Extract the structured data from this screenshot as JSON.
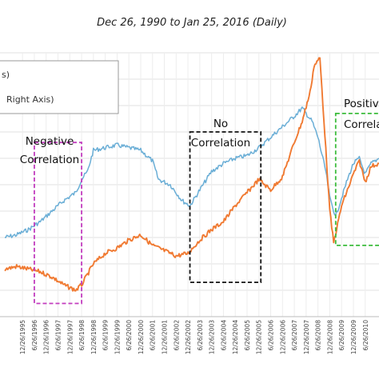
{
  "chart_data": {
    "type": "line",
    "title": "Dec 26, 1990 to Jan 25, 2016 (Daily)",
    "xlabel": "",
    "ylabel": "",
    "legend": {
      "placement": "top-left",
      "entries": [
        {
          "label": "s)",
          "color": "#6aaed6"
        },
        {
          "label": "Right Axis)",
          "color": "#f07a32"
        }
      ]
    },
    "x_tick_labels": [
      "12/26/1995",
      "6/26/1996",
      "12/26/1996",
      "6/26/1997",
      "12/26/1997",
      "6/26/1998",
      "12/26/1998",
      "6/26/1999",
      "12/26/1999",
      "6/26/2000",
      "12/26/2000",
      "6/26/2001",
      "12/26/2001",
      "6/26/2002",
      "12/26/2002",
      "6/26/2003",
      "12/26/2003",
      "6/26/2004",
      "12/26/2004",
      "6/26/2005",
      "12/26/2005",
      "6/26/2006",
      "12/26/2006",
      "6/26/2007",
      "12/26/2007",
      "6/26/2008",
      "12/26/2008",
      "6/26/2009",
      "12/26/2009",
      "6/26/2010"
    ],
    "x_range": [
      "1995-03",
      "2011-01"
    ],
    "y_range": [
      0,
      100
    ],
    "grid": true,
    "series": [
      {
        "color": "#6aaed6",
        "values": [
          [
            "1995-03",
            30
          ],
          [
            "1995-09",
            31
          ],
          [
            "1996-03",
            33
          ],
          [
            "1996-09",
            36
          ],
          [
            "1997-03",
            40
          ],
          [
            "1997-09",
            44
          ],
          [
            "1998-03",
            47
          ],
          [
            "1998-06",
            52
          ],
          [
            "1998-09",
            55
          ],
          [
            "1998-12",
            63
          ],
          [
            "1999-06",
            64
          ],
          [
            "1999-12",
            65
          ],
          [
            "2000-06",
            64
          ],
          [
            "2000-12",
            63
          ],
          [
            "2001-06",
            59
          ],
          [
            "2001-09",
            52
          ],
          [
            "2002-03",
            50
          ],
          [
            "2002-09",
            44
          ],
          [
            "2003-01",
            42
          ],
          [
            "2003-06",
            48
          ],
          [
            "2003-12",
            55
          ],
          [
            "2004-06",
            58
          ],
          [
            "2004-12",
            60
          ],
          [
            "2005-06",
            61
          ],
          [
            "2005-12",
            64
          ],
          [
            "2006-06",
            68
          ],
          [
            "2006-12",
            72
          ],
          [
            "2007-06",
            76
          ],
          [
            "2007-10",
            79
          ],
          [
            "2008-03",
            74
          ],
          [
            "2008-06",
            68
          ],
          [
            "2008-10",
            55
          ],
          [
            "2008-12",
            45
          ],
          [
            "2009-03",
            38
          ],
          [
            "2009-06",
            45
          ],
          [
            "2009-09",
            52
          ],
          [
            "2009-12",
            58
          ],
          [
            "2010-03",
            60
          ],
          [
            "2010-06",
            54
          ],
          [
            "2010-09",
            58
          ],
          [
            "2011-01",
            60
          ]
        ]
      },
      {
        "color": "#f07a32",
        "values": [
          [
            "1995-03",
            18
          ],
          [
            "1995-09",
            19
          ],
          [
            "1996-03",
            18
          ],
          [
            "1996-09",
            17
          ],
          [
            "1997-03",
            15
          ],
          [
            "1997-09",
            12
          ],
          [
            "1998-03",
            10
          ],
          [
            "1998-06",
            12
          ],
          [
            "1998-09",
            16
          ],
          [
            "1998-12",
            20
          ],
          [
            "1999-06",
            24
          ],
          [
            "1999-12",
            26
          ],
          [
            "2000-06",
            29
          ],
          [
            "2000-12",
            31
          ],
          [
            "2001-06",
            27
          ],
          [
            "2001-12",
            25
          ],
          [
            "2002-06",
            23
          ],
          [
            "2002-12",
            24
          ],
          [
            "2003-06",
            29
          ],
          [
            "2003-12",
            33
          ],
          [
            "2004-06",
            36
          ],
          [
            "2004-12",
            42
          ],
          [
            "2005-06",
            47
          ],
          [
            "2005-12",
            52
          ],
          [
            "2006-06",
            48
          ],
          [
            "2006-12",
            53
          ],
          [
            "2007-06",
            66
          ],
          [
            "2007-10",
            74
          ],
          [
            "2008-02",
            85
          ],
          [
            "2008-04",
            95
          ],
          [
            "2008-07",
            98
          ],
          [
            "2008-09",
            75
          ],
          [
            "2008-12",
            40
          ],
          [
            "2009-02",
            28
          ],
          [
            "2009-06",
            42
          ],
          [
            "2009-09",
            48
          ],
          [
            "2009-12",
            54
          ],
          [
            "2010-03",
            59
          ],
          [
            "2010-06",
            51
          ],
          [
            "2010-09",
            57
          ],
          [
            "2011-01",
            58
          ]
        ]
      }
    ],
    "annotations": [
      {
        "lines": [
          "Negative",
          "Correlation"
        ],
        "color": "#c23dbf",
        "start": "1996-06",
        "end": "1998-06",
        "y_top": 66,
        "y_bottom": 5
      },
      {
        "lines": [
          "No",
          "Correlation"
        ],
        "color": "#111111",
        "start": "2003-01",
        "end": "2006-01",
        "y_top": 70,
        "y_bottom": 13
      },
      {
        "lines": [
          "Positive",
          "Correlation"
        ],
        "color": "#3cbc3c",
        "start": "2009-03",
        "end": "2011-02",
        "y_top": 77,
        "y_bottom": 27
      }
    ]
  }
}
